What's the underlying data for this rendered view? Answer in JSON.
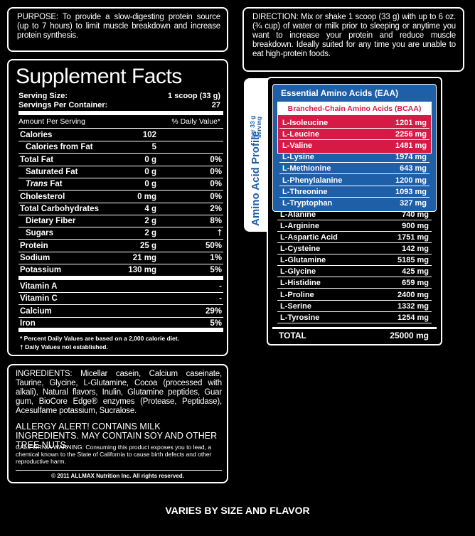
{
  "purpose": "PURPOSE:  To provide a slow-digesting protein source (up to 7 hours) to limit muscle breakdown and increase protein synthesis.",
  "direction": "DIRECTION: Mix or shake 1 scoop (33 g) with up to 6 oz. (¾ cup) of water or milk prior to sleeping or anytime you want to increase your protein and reduce muscle breakdown. Ideally suited for any time you are unable to eat high-protein foods.",
  "facts": {
    "title": "Supplement Facts",
    "serving_size": {
      "label": "Serving Size:",
      "value": "1 scoop (33 g)"
    },
    "servings_per_container": {
      "label": "Servings Per Container:",
      "value": "27"
    },
    "amount_header": "Amount Per Serving",
    "dv_header": "% Daily Value*",
    "rows": [
      {
        "name": "Calories",
        "amount": "102",
        "dv": ""
      },
      {
        "name": "Calories from Fat",
        "amount": "5",
        "dv": ""
      },
      {
        "name": "Total Fat",
        "amount": "0 g",
        "dv": "0%"
      },
      {
        "name": "Saturated Fat",
        "amount": "0 g",
        "dv": "0%"
      },
      {
        "name_italic": "Trans",
        "name": "Fat",
        "amount": "0 g",
        "dv": "0%"
      },
      {
        "name": "Cholesterol",
        "amount": "0 mg",
        "dv": "0%"
      },
      {
        "name": "Total Carbohydrates",
        "amount": "4 g",
        "dv": "2%"
      },
      {
        "name": "Dietary Fiber",
        "amount": "2 g",
        "dv": "8%"
      },
      {
        "name": "Sugars",
        "amount": "2 g",
        "dv": "†"
      },
      {
        "name": "Protein",
        "amount": "25 g",
        "dv": "50%"
      },
      {
        "name": "Sodium",
        "amount": "21 mg",
        "dv": "1%"
      },
      {
        "name": "Potassium",
        "amount": "130 mg",
        "dv": "5%"
      }
    ],
    "vitamins": [
      {
        "name": "Vitamin A",
        "dv": "-"
      },
      {
        "name": "Vitamin C",
        "dv": "-"
      },
      {
        "name": "Calcium",
        "dv": "29%"
      },
      {
        "name": "Iron",
        "dv": "5%"
      }
    ],
    "footnotes": [
      "* Percent Daily Values are based on a 2,000 calorie diet.",
      "† Daily Values not established."
    ]
  },
  "ingredients": "INGREDIENTS:  Micellar casein, Calcium caseinate, Taurine, Glycine, L-Glutamine, Cocoa (processed with alkali), Natural flavors, Inulin, Glutamine peptides, Guar gum, BioCore Edge® enzymes (Protease, Peptidase), Acesulfame potassium, Sucralose.",
  "allergy": "ALLERGY ALERT! CONTAINS MILK INGREDIENTS. MAY CONTAIN SOY AND OTHER TREE NUTS.",
  "warning": "CALIFORNIA WARNING: Consuming this product exposes you to lead, a chemical known to the State of California to cause birth defects and other reproductive harm.",
  "copyright": "© 2011 ALLMAX Nutrition Inc.  All rights reserved.",
  "amino": {
    "side_title": "Amino Acid Profile",
    "side_sub": "per 33 g serving",
    "eaa_header": "Essential Amino Acids (EAA)",
    "bcaa_header": "Branched-Chain Amino Acids (BCAA)",
    "bcaa": [
      {
        "name": "L-Isoleucine",
        "value": "1201 mg"
      },
      {
        "name": "L-Leucine",
        "value": "2256 mg"
      },
      {
        "name": "L-Valine",
        "value": "1481 mg"
      }
    ],
    "eaa": [
      {
        "name": "L-Lysine",
        "value": "1974 mg"
      },
      {
        "name": "L-Methionine",
        "value": "643 mg"
      },
      {
        "name": "L-Phenylalanine",
        "value": "1200 mg"
      },
      {
        "name": "L-Threonine",
        "value": "1093 mg"
      },
      {
        "name": "L-Tryptophan",
        "value": "327 mg"
      }
    ],
    "other": [
      {
        "name": "L-Alanine",
        "value": "740 mg"
      },
      {
        "name": "L-Arginine",
        "value": "900 mg"
      },
      {
        "name": "L-Aspartic Acid",
        "value": "1751 mg"
      },
      {
        "name": "L-Cysteine",
        "value": "142 mg"
      },
      {
        "name": "L-Glutamine",
        "value": "5185 mg"
      },
      {
        "name": "L-Glycine",
        "value": "425 mg"
      },
      {
        "name": "L-Histidine",
        "value": "659 mg"
      },
      {
        "name": "L-Proline",
        "value": "2400 mg"
      },
      {
        "name": "L-Serine",
        "value": "1332 mg"
      },
      {
        "name": "L-Tyrosine",
        "value": "1254 mg"
      }
    ],
    "total": {
      "name": "TOTAL",
      "value": "25000 mg"
    }
  },
  "footer": "VARIES BY SIZE AND FLAVOR"
}
